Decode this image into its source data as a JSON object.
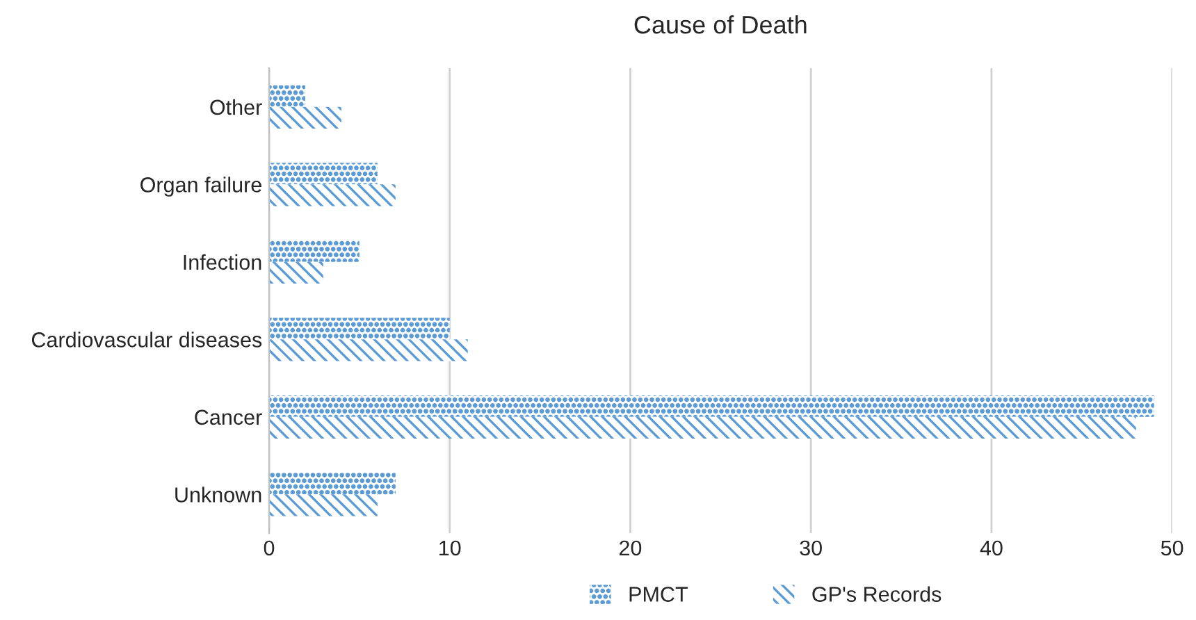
{
  "chart_data": {
    "type": "bar",
    "orientation": "horizontal",
    "title": "Cause of Death",
    "categories": [
      "Other",
      "Organ failure",
      "Infection",
      "Cardiovascular diseases",
      "Cancer",
      "Unknown"
    ],
    "series": [
      {
        "name": "PMCT",
        "color": "#5b9bd5",
        "values": [
          2,
          6,
          5,
          10,
          49,
          7
        ]
      },
      {
        "name": "GP's Records",
        "color": "#5b9bd5",
        "values": [
          4,
          7,
          3,
          11,
          48,
          6
        ]
      }
    ],
    "xlim": [
      0,
      50
    ],
    "xticks": [
      0,
      10,
      20,
      30,
      40,
      50
    ],
    "grid": "x",
    "legend": "bottom"
  }
}
